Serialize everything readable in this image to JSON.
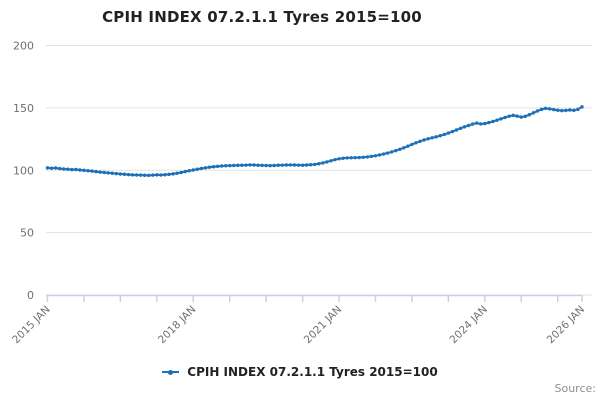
{
  "source_label": "Source:",
  "legend": {
    "label": "CPIH INDEX 07.2.1.1 Tyres 2015=100"
  },
  "chart_data": {
    "type": "line",
    "title": "CPIH INDEX 07.2.1.1 Tyres 2015=100",
    "xlabel": "",
    "ylabel": "",
    "ylim": [
      0,
      200
    ],
    "y_ticks": [
      0,
      50,
      100,
      150,
      200
    ],
    "grid": "horizontal",
    "legend_position": "bottom",
    "x_tick_labels": [
      "2015 JAN",
      "2018 JAN",
      "2021 JAN",
      "2024 JAN",
      "2026 JAN"
    ],
    "x_tick_months": [
      0,
      36,
      72,
      108,
      132
    ],
    "x_minor_tick_months": [
      0,
      9,
      18,
      27,
      36,
      45,
      54,
      63,
      72,
      81,
      90,
      99,
      108,
      117,
      126,
      132
    ],
    "series": [
      {
        "name": "CPIH INDEX 07.2.1.1 Tyres 2015=100",
        "start": "2015 JAN",
        "end": "2026 JAN",
        "frequency": "monthly",
        "values": [
          101.9,
          101.6,
          101.8,
          101.3,
          101.0,
          100.8,
          100.5,
          100.6,
          100.2,
          99.9,
          99.6,
          99.3,
          98.9,
          98.5,
          98.2,
          97.9,
          97.6,
          97.3,
          97.0,
          96.8,
          96.5,
          96.3,
          96.2,
          96.1,
          96.0,
          95.9,
          96.1,
          96.3,
          96.2,
          96.4,
          96.7,
          97.1,
          97.6,
          98.2,
          98.9,
          99.6,
          100.2,
          100.8,
          101.4,
          101.9,
          102.4,
          102.8,
          103.1,
          103.4,
          103.6,
          103.7,
          103.8,
          103.9,
          104.0,
          104.1,
          104.3,
          104.2,
          104.0,
          103.9,
          103.8,
          103.7,
          103.8,
          104.0,
          104.1,
          104.2,
          104.3,
          104.2,
          104.1,
          104.0,
          104.2,
          104.4,
          104.7,
          105.2,
          105.9,
          106.7,
          107.6,
          108.5,
          109.2,
          109.6,
          109.9,
          110.0,
          110.1,
          110.2,
          110.4,
          110.7,
          111.1,
          111.6,
          112.3,
          113.0,
          113.8,
          114.7,
          115.7,
          116.8,
          118.0,
          119.3,
          120.7,
          122.0,
          123.2,
          124.3,
          125.2,
          126.0,
          126.8,
          127.7,
          128.7,
          129.8,
          131.0,
          132.3,
          133.6,
          134.8,
          135.9,
          137.0,
          137.8,
          137.1,
          137.4,
          138.2,
          139.1,
          140.1,
          141.2,
          142.3,
          143.3,
          144.0,
          143.4,
          142.6,
          143.2,
          144.5,
          146.0,
          147.5,
          148.8,
          149.6,
          149.2,
          148.6,
          148.1,
          147.8,
          148.0,
          148.3,
          148.0,
          148.8,
          150.8
        ]
      }
    ],
    "colors": {
      "line": "#1d70b8",
      "grid": "#e2e2e2",
      "axis": "#c9d2e4",
      "tick_text": "#707070",
      "title_text": "#222222",
      "source_text": "#8f8f8f"
    }
  }
}
